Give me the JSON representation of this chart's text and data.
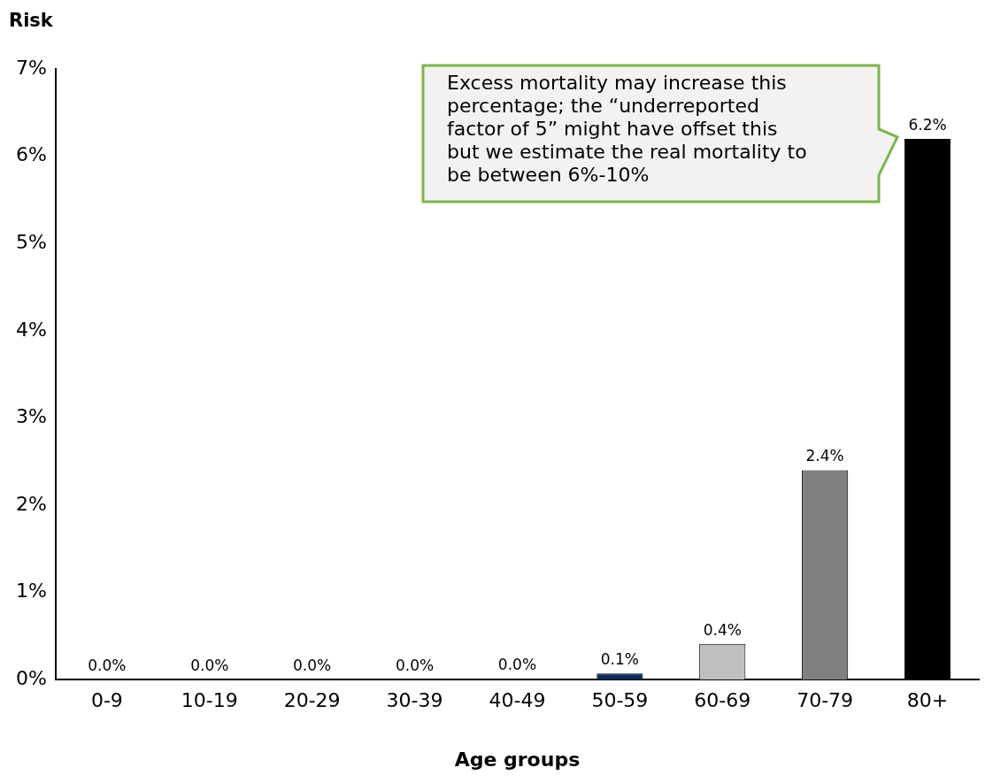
{
  "chart_data": {
    "type": "bar",
    "ylabel": "Risk",
    "xlabel": "Age groups",
    "categories": [
      "0-9",
      "10-19",
      "20-29",
      "30-39",
      "40-49",
      "50-59",
      "60-69",
      "70-79",
      "80+"
    ],
    "values": [
      0.002,
      0.002,
      0.003,
      0.005,
      0.015,
      0.07,
      0.41,
      2.4,
      6.2
    ],
    "colors": [
      "#0b2a5b",
      "#0b2a5b",
      "#0b2a5b",
      "#0b2a5b",
      "#0b2a5b",
      "#0b2a5b",
      "#bfbfbf",
      "#808080",
      "#000000"
    ],
    "value_labels": [
      "0.0%",
      "0.0%",
      "0.0%",
      "0.0%",
      "0.0%",
      "0.1%",
      "0.4%",
      "2.4%",
      "6.2%"
    ],
    "ylim": [
      0,
      7
    ],
    "yticks": [
      {
        "value": 0,
        "label": "0%"
      },
      {
        "value": 1,
        "label": "1%"
      },
      {
        "value": 2,
        "label": "2%"
      },
      {
        "value": 3,
        "label": "3%"
      },
      {
        "value": 4,
        "label": "4%"
      },
      {
        "value": 5,
        "label": "5%"
      },
      {
        "value": 6,
        "label": "6%"
      },
      {
        "value": 7,
        "label": "7%"
      }
    ],
    "grid": false,
    "legend": false,
    "annotations": [
      "Excess mortality may increase this percentage; the “underreported factor of 5” might have offset this but we estimate the real mortality to be between 6%-10%"
    ]
  }
}
